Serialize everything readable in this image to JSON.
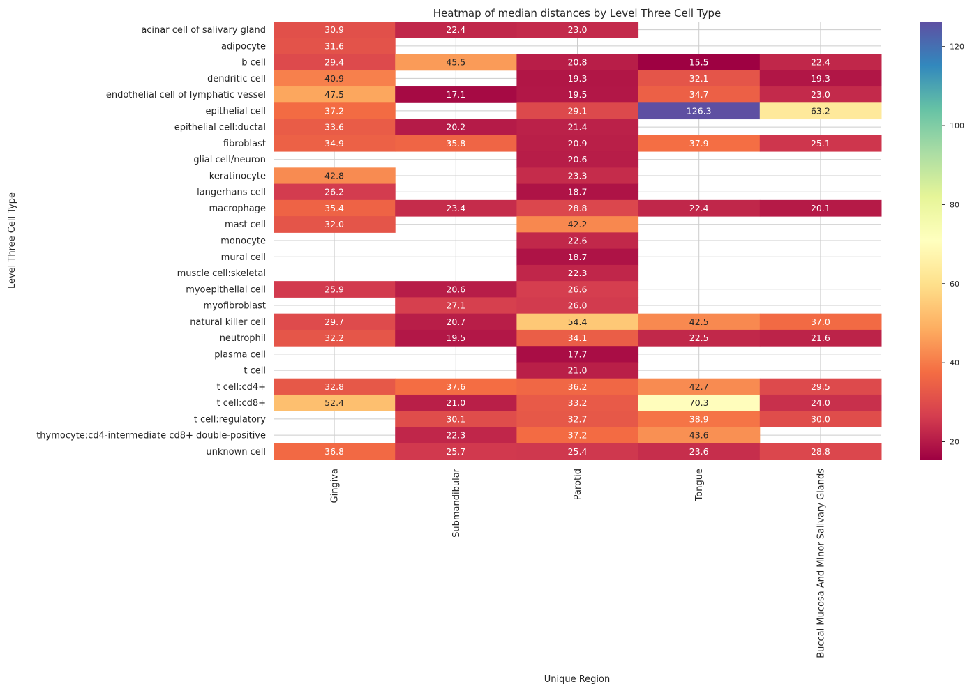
{
  "chart_data": {
    "type": "heatmap",
    "title": "Heatmap of median distances by Level Three Cell Type",
    "xlabel": "Unique Region",
    "ylabel": "Level Three Cell Type",
    "columns": [
      "Gingiva",
      "Submandibular",
      "Parotid",
      "Tongue",
      "Buccal Mucosa And Minor Salivary Glands"
    ],
    "rows": [
      "acinar cell of salivary gland",
      "adipocyte",
      "b cell",
      "dendritic cell",
      "endothelial cell of lymphatic vessel",
      "epithelial cell",
      "epithelial cell:ductal ",
      "fibroblast",
      "glial cell/neuron",
      "keratinocyte",
      "langerhans cell",
      "macrophage",
      "mast cell",
      "monocyte",
      "mural cell",
      "muscle cell:skeletal",
      "myoepithelial cell",
      "myofibroblast",
      "natural killer cell",
      "neutrophil",
      "plasma cell",
      "t cell",
      "t cell:cd4+",
      "t cell:cd8+",
      "t cell:regulatory",
      "thymocyte:cd4-intermediate cd8+ double-positive",
      "unknown cell"
    ],
    "values": [
      [
        30.9,
        22.4,
        23.0,
        null,
        null
      ],
      [
        31.6,
        null,
        null,
        null,
        null
      ],
      [
        29.4,
        45.5,
        20.8,
        15.5,
        22.4
      ],
      [
        40.9,
        null,
        19.3,
        32.1,
        19.3
      ],
      [
        47.5,
        17.1,
        19.5,
        34.7,
        23.0
      ],
      [
        37.2,
        null,
        29.1,
        126.3,
        63.2
      ],
      [
        33.6,
        20.2,
        21.4,
        null,
        null
      ],
      [
        34.9,
        35.8,
        20.9,
        37.9,
        25.1
      ],
      [
        null,
        null,
        20.6,
        null,
        null
      ],
      [
        42.8,
        null,
        23.3,
        null,
        null
      ],
      [
        26.2,
        null,
        18.7,
        null,
        null
      ],
      [
        35.4,
        23.4,
        28.8,
        22.4,
        20.1
      ],
      [
        32.0,
        null,
        42.2,
        null,
        null
      ],
      [
        null,
        null,
        22.6,
        null,
        null
      ],
      [
        null,
        null,
        18.7,
        null,
        null
      ],
      [
        null,
        null,
        22.3,
        null,
        null
      ],
      [
        25.9,
        20.6,
        26.6,
        null,
        null
      ],
      [
        null,
        27.1,
        26.0,
        null,
        null
      ],
      [
        29.7,
        20.7,
        54.4,
        42.5,
        37.0
      ],
      [
        32.2,
        19.5,
        34.1,
        22.5,
        21.6
      ],
      [
        null,
        null,
        17.7,
        null,
        null
      ],
      [
        null,
        null,
        21.0,
        null,
        null
      ],
      [
        32.8,
        37.6,
        36.2,
        42.7,
        29.5
      ],
      [
        52.4,
        21.0,
        33.2,
        70.3,
        24.0
      ],
      [
        null,
        30.1,
        32.7,
        38.9,
        30.0
      ],
      [
        null,
        22.3,
        37.2,
        43.6,
        null
      ],
      [
        36.8,
        25.7,
        25.4,
        23.6,
        28.8
      ]
    ],
    "colormap": "Spectral",
    "vmin": 15.5,
    "vmax": 126.3,
    "colorbar_ticks": [
      20,
      40,
      60,
      80,
      100,
      120
    ],
    "colorbar_tick_labels": [
      "20",
      "40",
      "60",
      "80",
      "100",
      "120"
    ],
    "grid": true,
    "legend": "colorbar-right"
  }
}
